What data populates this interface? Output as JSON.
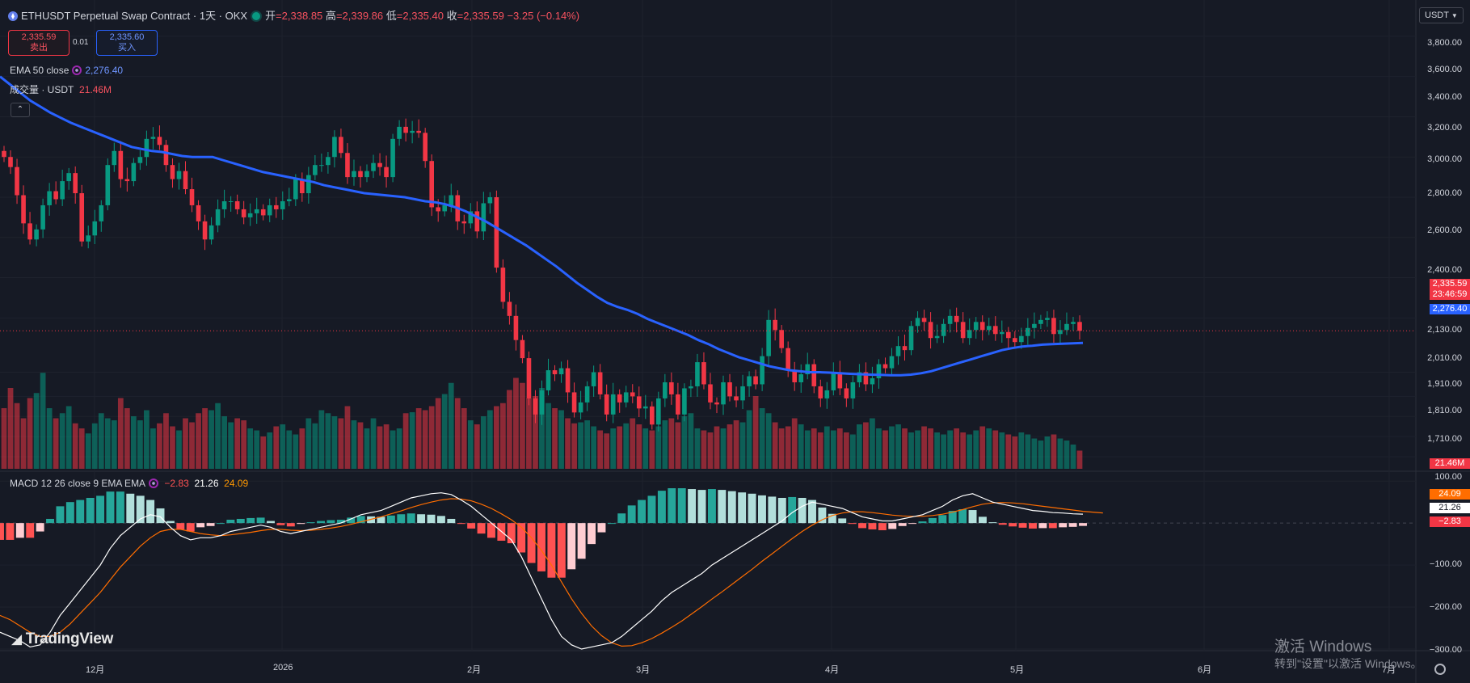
{
  "header": {
    "symbol": "ETHUSDT Perpetual Swap Contract · 1天 · OKX",
    "open_label": "开",
    "open": "=2,338.85",
    "high_label": "高",
    "high": "=2,339.86",
    "low_label": "低",
    "low": "=2,335.40",
    "close_label": "收",
    "close": "=2,335.59",
    "change": "−3.25 (−0.14%)"
  },
  "trade": {
    "sell_price": "2,335.59",
    "sell_label": "卖出",
    "spread": "0.01",
    "buy_price": "2,335.60",
    "buy_label": "买入"
  },
  "legends": {
    "ema_name": "EMA 50 close",
    "ema_value": "2,276.40",
    "volume_name": "成交量 · USDT",
    "volume_value": "21.46M",
    "macd_name": "MACD 12 26 close 9 EMA EMA",
    "macd_hist": "−2.83",
    "macd_line": "21.26",
    "macd_signal": "24.09"
  },
  "currency_button": "USDT",
  "price_axis": [
    "3,800.00",
    "3,600.00",
    "3,400.00",
    "3,200.00",
    "3,000.00",
    "2,800.00",
    "2,600.00",
    "2,400.00",
    "2,130.00",
    "2,010.00",
    "1,910.00",
    "1,810.00",
    "1,710.00"
  ],
  "price_tags": {
    "last_price": "2,335.59",
    "countdown": "23:46:59",
    "ema": "2,276.40",
    "volume": "21.46M"
  },
  "macd_axis": [
    "100.00",
    "−100.00",
    "−200.00",
    "−300.00"
  ],
  "macd_tags": {
    "signal": "24.09",
    "macd": "21.26",
    "hist": "−2.83"
  },
  "time_axis": [
    "12月",
    "2026",
    "2月",
    "3月",
    "4月",
    "5月",
    "6月",
    "7月"
  ],
  "branding": {
    "logo": "TradingView"
  },
  "watermark": {
    "line1": "激活 Windows",
    "line2": "转到\"设置\"以激活 Windows。"
  },
  "colors": {
    "background": "#161a25",
    "up": "#089981",
    "down": "#f23645",
    "ema": "#2962ff",
    "macd": "#ffffff",
    "signal": "#ff6d00",
    "hist_up_strong": "#26a69a",
    "hist_up_weak": "#b2dfdb",
    "hist_down_strong": "#ff5252",
    "hist_down_weak": "#ffcdd2"
  },
  "chart_data": [
    {
      "type": "candlestick",
      "title": "ETHUSDT Perpetual Swap Contract · 1天 · OKX",
      "ylim": [
        1650,
        3900
      ],
      "x_labels": [
        "12月",
        "2026",
        "2月",
        "3月",
        "4月",
        "5月",
        "6月",
        "7月"
      ],
      "last": {
        "open": 2338.85,
        "high": 2339.86,
        "low": 2335.4,
        "close": 2335.59
      },
      "close": [
        3200,
        3150,
        3010,
        2870,
        2790,
        2840,
        2960,
        3030,
        2990,
        3080,
        3120,
        3020,
        2780,
        2810,
        2880,
        2960,
        3160,
        3230,
        3090,
        3080,
        3170,
        3200,
        3290,
        3300,
        3260,
        3160,
        3090,
        3130,
        3040,
        2960,
        2880,
        2790,
        2860,
        2940,
        2980,
        2980,
        2940,
        2900,
        2920,
        2940,
        2910,
        2960,
        2940,
        2980,
        2990,
        3090,
        3020,
        3110,
        3160,
        3160,
        3200,
        3300,
        3220,
        3100,
        3130,
        3100,
        3130,
        3170,
        3150,
        3100,
        3290,
        3350,
        3320,
        3330,
        3320,
        3180,
        2950,
        2930,
        2960,
        3010,
        2880,
        2870,
        2930,
        2830,
        2970,
        3000,
        2650,
        2480,
        2410,
        2290,
        2200,
        2000,
        1920,
        2040,
        2140,
        2120,
        2150,
        2030,
        1930,
        1980,
        2060,
        2130,
        2020,
        1920,
        2020,
        1980,
        2030,
        2010,
        1950,
        1960,
        1870,
        2000,
        2080,
        2020,
        1920,
        2050,
        2060,
        2180,
        2070,
        1980,
        1970,
        2080,
        2010,
        1990,
        2060,
        2110,
        2070,
        2210,
        2390,
        2340,
        2250,
        2140,
        2080,
        2120,
        2170,
        2060,
        2000,
        2040,
        2130,
        2050,
        2000,
        2080,
        2130,
        2070,
        2100,
        2170,
        2150,
        2210,
        2260,
        2240,
        2360,
        2400,
        2380,
        2300,
        2310,
        2370,
        2410,
        2380,
        2300,
        2340,
        2380,
        2340,
        2360,
        2320,
        2330,
        2300,
        2280,
        2310,
        2350,
        2370,
        2390,
        2400,
        2320,
        2340,
        2370,
        2380,
        2336
      ],
      "ema50": [
        3600,
        3560,
        3520,
        3480,
        3450,
        3420,
        3395,
        3370,
        3350,
        3330,
        3310,
        3290,
        3270,
        3250,
        3240,
        3230,
        3225,
        3215,
        3205,
        3200,
        3200,
        3200,
        3185,
        3170,
        3155,
        3140,
        3125,
        3115,
        3105,
        3095,
        3085,
        3075,
        3060,
        3050,
        3040,
        3030,
        3020,
        3015,
        3010,
        3005,
        3000,
        2990,
        2980,
        2975,
        2965,
        2950,
        2930,
        2905,
        2880,
        2850,
        2820,
        2790,
        2760,
        2725,
        2690,
        2655,
        2615,
        2575,
        2540,
        2505,
        2475,
        2455,
        2440,
        2420,
        2395,
        2375,
        2355,
        2335,
        2315,
        2290,
        2270,
        2245,
        2225,
        2205,
        2190,
        2175,
        2160,
        2150,
        2140,
        2135,
        2130,
        2130,
        2128,
        2125,
        2122,
        2120,
        2118,
        2117,
        2115,
        2115,
        2118,
        2125,
        2135,
        2150,
        2165,
        2180,
        2195,
        2210,
        2225,
        2240,
        2250,
        2258,
        2262,
        2267,
        2270,
        2272,
        2274,
        2276
      ]
    },
    {
      "type": "bar",
      "name": "成交量 · USDT",
      "last_value": "21.46M",
      "values": [
        60,
        80,
        65,
        50,
        70,
        75,
        95,
        60,
        50,
        55,
        62,
        45,
        40,
        35,
        45,
        55,
        50,
        48,
        70,
        60,
        52,
        48,
        58,
        40,
        45,
        55,
        42,
        38,
        50,
        46,
        55,
        60,
        58,
        65,
        52,
        46,
        50,
        48,
        40,
        38,
        32,
        36,
        42,
        44,
        38,
        34,
        40,
        50,
        45,
        58,
        55,
        52,
        50,
        62,
        48,
        46,
        40,
        50,
        42,
        44,
        38,
        40,
        55,
        56,
        60,
        58,
        62,
        70,
        74,
        85,
        70,
        60,
        48,
        44,
        52,
        58,
        62,
        65,
        78,
        90,
        85,
        70,
        72,
        80,
        65,
        60,
        58,
        50,
        45,
        46,
        48,
        42,
        38,
        35,
        40,
        42,
        45,
        50,
        44,
        40,
        38,
        42,
        48,
        50,
        46,
        52,
        55,
        40,
        38,
        36,
        42,
        40,
        44,
        48,
        46,
        58,
        72,
        60,
        55,
        46,
        40,
        42,
        50,
        44,
        38,
        40,
        36,
        42,
        38,
        40,
        36,
        34,
        44,
        46,
        50,
        40,
        38,
        42,
        44,
        40,
        36,
        38,
        42,
        40,
        36,
        34,
        38,
        40,
        36,
        34,
        38,
        42,
        40,
        38,
        36,
        34,
        32,
        36,
        34,
        30,
        28,
        32,
        34,
        30,
        28,
        24,
        18
      ],
      "unit": "relative"
    },
    {
      "type": "bar+line",
      "name": "MACD 12 26 close 9 EMA EMA",
      "ylim": [
        -300,
        110
      ],
      "histogram_last": -2.83,
      "macd_last": 21.26,
      "signal_last": 24.09,
      "macd": [
        -260,
        -270,
        -280,
        -295,
        -290,
        -260,
        -220,
        -190,
        -160,
        -130,
        -100,
        -60,
        -30,
        -10,
        10,
        20,
        15,
        -10,
        -30,
        -40,
        -35,
        -35,
        -30,
        -20,
        -15,
        -10,
        -5,
        -10,
        -20,
        -25,
        -20,
        -15,
        -10,
        -5,
        0,
        10,
        20,
        25,
        30,
        40,
        50,
        60,
        65,
        70,
        72,
        68,
        55,
        40,
        20,
        0,
        -20,
        -40,
        -80,
        -130,
        -180,
        -230,
        -270,
        -290,
        -300,
        -295,
        -290,
        -285,
        -270,
        -250,
        -230,
        -210,
        -185,
        -165,
        -150,
        -135,
        -120,
        -100,
        -85,
        -70,
        -55,
        -40,
        -25,
        -10,
        5,
        25,
        40,
        50,
        45,
        40,
        35,
        25,
        15,
        10,
        5,
        5,
        10,
        15,
        20,
        30,
        40,
        55,
        65,
        70,
        60,
        50,
        45,
        40,
        35,
        30,
        28,
        25,
        24,
        22,
        21.26
      ],
      "signal": [
        -220,
        -230,
        -245,
        -260,
        -270,
        -270,
        -260,
        -240,
        -215,
        -190,
        -165,
        -135,
        -105,
        -80,
        -55,
        -35,
        -20,
        -15,
        -15,
        -20,
        -25,
        -28,
        -30,
        -28,
        -25,
        -22,
        -18,
        -15,
        -15,
        -17,
        -18,
        -17,
        -15,
        -12,
        -8,
        -3,
        3,
        9,
        15,
        22,
        29,
        37,
        44,
        50,
        55,
        58,
        57,
        53,
        45,
        35,
        22,
        8,
        -10,
        -35,
        -65,
        -100,
        -140,
        -180,
        -215,
        -245,
        -268,
        -285,
        -293,
        -292,
        -285,
        -275,
        -262,
        -248,
        -233,
        -216,
        -199,
        -181,
        -164,
        -146,
        -128,
        -110,
        -91,
        -73,
        -55,
        -37,
        -20,
        -5,
        8,
        18,
        24,
        27,
        27,
        25,
        22,
        19,
        17,
        16,
        16,
        18,
        21,
        26,
        32,
        39,
        45,
        48,
        49,
        48,
        46,
        43,
        40,
        37,
        34,
        31,
        28,
        26,
        24.09
      ]
    }
  ]
}
